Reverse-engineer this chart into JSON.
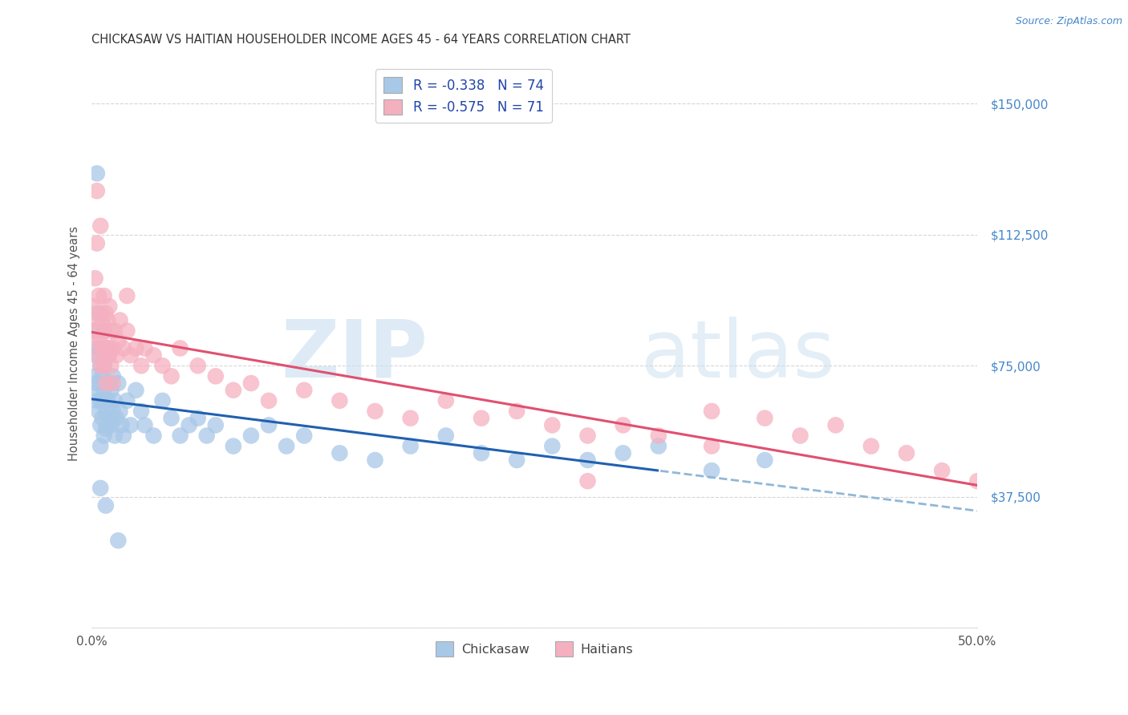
{
  "title": "CHICKASAW VS HAITIAN HOUSEHOLDER INCOME AGES 45 - 64 YEARS CORRELATION CHART",
  "source": "Source: ZipAtlas.com",
  "ylabel": "Householder Income Ages 45 - 64 years",
  "x_min": 0.0,
  "x_max": 0.5,
  "y_min": 0,
  "y_max": 162500,
  "x_ticks": [
    0.0,
    0.1,
    0.2,
    0.3,
    0.4,
    0.5
  ],
  "x_tick_labels": [
    "0.0%",
    "",
    "",
    "",
    "",
    "50.0%"
  ],
  "y_ticks": [
    0,
    37500,
    75000,
    112500,
    150000
  ],
  "y_tick_labels": [
    "",
    "$37,500",
    "$75,000",
    "$112,500",
    "$150,000"
  ],
  "chickasaw_R": -0.338,
  "chickasaw_N": 74,
  "haitian_R": -0.575,
  "haitian_N": 71,
  "chickasaw_color": "#a8c8e8",
  "haitian_color": "#f5b0c0",
  "chickasaw_line_color": "#2060b0",
  "haitian_line_color": "#e05070",
  "dashed_line_color": "#90b8d8",
  "bg_color": "#ffffff",
  "grid_color": "#cccccc",
  "legend_label_1": "R = -0.338   N = 74",
  "legend_label_2": "R = -0.575   N = 71",
  "bottom_legend_1": "Chickasaw",
  "bottom_legend_2": "Haitians",
  "chickasaw_x": [
    0.001,
    0.002,
    0.002,
    0.003,
    0.003,
    0.003,
    0.004,
    0.004,
    0.004,
    0.005,
    0.005,
    0.005,
    0.005,
    0.006,
    0.006,
    0.006,
    0.007,
    0.007,
    0.007,
    0.007,
    0.008,
    0.008,
    0.008,
    0.009,
    0.009,
    0.009,
    0.01,
    0.01,
    0.01,
    0.011,
    0.011,
    0.012,
    0.012,
    0.013,
    0.013,
    0.014,
    0.015,
    0.016,
    0.017,
    0.018,
    0.02,
    0.022,
    0.025,
    0.028,
    0.03,
    0.035,
    0.04,
    0.045,
    0.05,
    0.055,
    0.06,
    0.065,
    0.07,
    0.08,
    0.09,
    0.1,
    0.11,
    0.12,
    0.14,
    0.16,
    0.18,
    0.2,
    0.22,
    0.24,
    0.26,
    0.28,
    0.3,
    0.32,
    0.35,
    0.38,
    0.003,
    0.005,
    0.008,
    0.015
  ],
  "chickasaw_y": [
    85000,
    78000,
    72000,
    90000,
    70000,
    65000,
    80000,
    68000,
    62000,
    75000,
    65000,
    58000,
    52000,
    72000,
    65000,
    60000,
    85000,
    75000,
    68000,
    55000,
    70000,
    62000,
    57000,
    78000,
    65000,
    58000,
    80000,
    70000,
    60000,
    68000,
    58000,
    72000,
    62000,
    65000,
    55000,
    60000,
    70000,
    62000,
    58000,
    55000,
    65000,
    58000,
    68000,
    62000,
    58000,
    55000,
    65000,
    60000,
    55000,
    58000,
    60000,
    55000,
    58000,
    52000,
    55000,
    58000,
    52000,
    55000,
    50000,
    48000,
    52000,
    55000,
    50000,
    48000,
    52000,
    48000,
    50000,
    52000,
    45000,
    48000,
    130000,
    40000,
    35000,
    25000
  ],
  "haitian_x": [
    0.001,
    0.002,
    0.002,
    0.003,
    0.003,
    0.004,
    0.004,
    0.004,
    0.005,
    0.005,
    0.005,
    0.006,
    0.006,
    0.007,
    0.007,
    0.007,
    0.008,
    0.008,
    0.008,
    0.009,
    0.009,
    0.01,
    0.01,
    0.011,
    0.011,
    0.012,
    0.012,
    0.013,
    0.014,
    0.015,
    0.016,
    0.018,
    0.02,
    0.022,
    0.025,
    0.028,
    0.03,
    0.035,
    0.04,
    0.045,
    0.05,
    0.06,
    0.07,
    0.08,
    0.09,
    0.1,
    0.12,
    0.14,
    0.16,
    0.18,
    0.2,
    0.22,
    0.24,
    0.26,
    0.28,
    0.3,
    0.32,
    0.35,
    0.38,
    0.4,
    0.42,
    0.44,
    0.46,
    0.48,
    0.5,
    0.003,
    0.005,
    0.01,
    0.02,
    0.28,
    0.35
  ],
  "haitian_y": [
    92000,
    100000,
    85000,
    110000,
    88000,
    95000,
    82000,
    78000,
    90000,
    82000,
    75000,
    88000,
    80000,
    95000,
    85000,
    75000,
    90000,
    78000,
    70000,
    88000,
    80000,
    92000,
    78000,
    85000,
    75000,
    80000,
    70000,
    85000,
    78000,
    82000,
    88000,
    80000,
    85000,
    78000,
    80000,
    75000,
    80000,
    78000,
    75000,
    72000,
    80000,
    75000,
    72000,
    68000,
    70000,
    65000,
    68000,
    65000,
    62000,
    60000,
    65000,
    60000,
    62000,
    58000,
    55000,
    58000,
    55000,
    52000,
    60000,
    55000,
    58000,
    52000,
    50000,
    45000,
    42000,
    125000,
    115000,
    80000,
    95000,
    42000,
    62000
  ]
}
